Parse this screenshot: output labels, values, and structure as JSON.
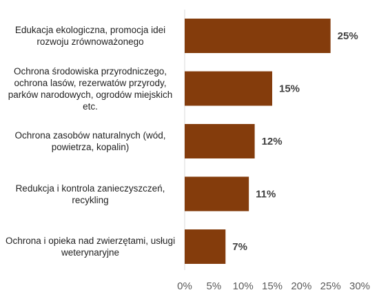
{
  "chart_data": {
    "type": "bar",
    "orientation": "horizontal",
    "categories": [
      "Edukacja ekologiczna, promocja idei rozwoju zrównoważonego",
      "Ochrona środowiska przyrodniczego, ochrona lasów, rezerwatów przyrody, parków narodowych, ogrodów miejskich etc.",
      "Ochrona zasobów naturalnych (wód, powietrza, kopalin)",
      "Redukcja i kontrola zanieczyszczeń, recykling",
      "Ochrona i opieka nad zwierzętami, usługi weterynaryjne"
    ],
    "category_lines": [
      [
        "Edukacja ekologiczna, promocja idei",
        "rozwoju zrównoważonego"
      ],
      [
        "Ochrona środowiska przyrodniczego,",
        "ochrona lasów, rezerwatów przyrody,",
        "parków narodowych, ogrodów miejskich",
        "etc."
      ],
      [
        "Ochrona zasobów naturalnych (wód,",
        "powietrza, kopalin)"
      ],
      [
        "Redukcja i kontrola zanieczyszczeń,",
        "recykling"
      ],
      [
        "Ochrona i opieka nad zwierzętami, usługi",
        "weterynaryjne"
      ]
    ],
    "values": [
      25,
      15,
      12,
      11,
      7
    ],
    "data_labels": [
      "25%",
      "15%",
      "12%",
      "11%",
      "7%"
    ],
    "xlim": [
      0,
      30
    ],
    "ticks": [
      0,
      5,
      10,
      15,
      20,
      25,
      30
    ],
    "tick_labels": [
      "0%",
      "5%",
      "10%",
      "15%",
      "20%",
      "25%",
      "30%"
    ],
    "grid": false,
    "bar_color": "#843c0c",
    "title": "",
    "xlabel": "",
    "ylabel": ""
  }
}
